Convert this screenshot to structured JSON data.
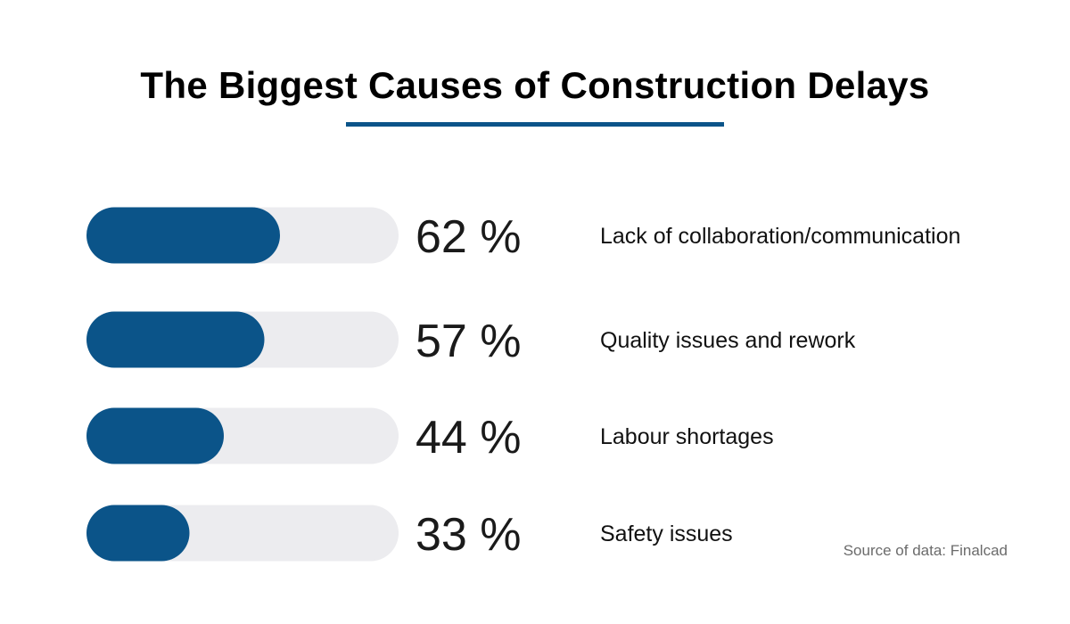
{
  "title": "The Biggest Causes of Construction Delays",
  "source": "Source of data: Finalcad",
  "colors": {
    "fill": "#0b5489",
    "track": "#ececef",
    "rule": "#0b5489"
  },
  "chart_data": {
    "type": "bar",
    "orientation": "horizontal",
    "title": "The Biggest Causes of Construction Delays",
    "categories": [
      "Lack of collaboration/communication",
      "Quality issues and rework",
      "Labour shortages",
      "Safety issues"
    ],
    "values": [
      62,
      57,
      44,
      33
    ],
    "value_labels": [
      "62 %",
      "57 %",
      "44 %",
      "33 %"
    ],
    "xlim": [
      0,
      100
    ],
    "unit": "%",
    "grid": false
  }
}
